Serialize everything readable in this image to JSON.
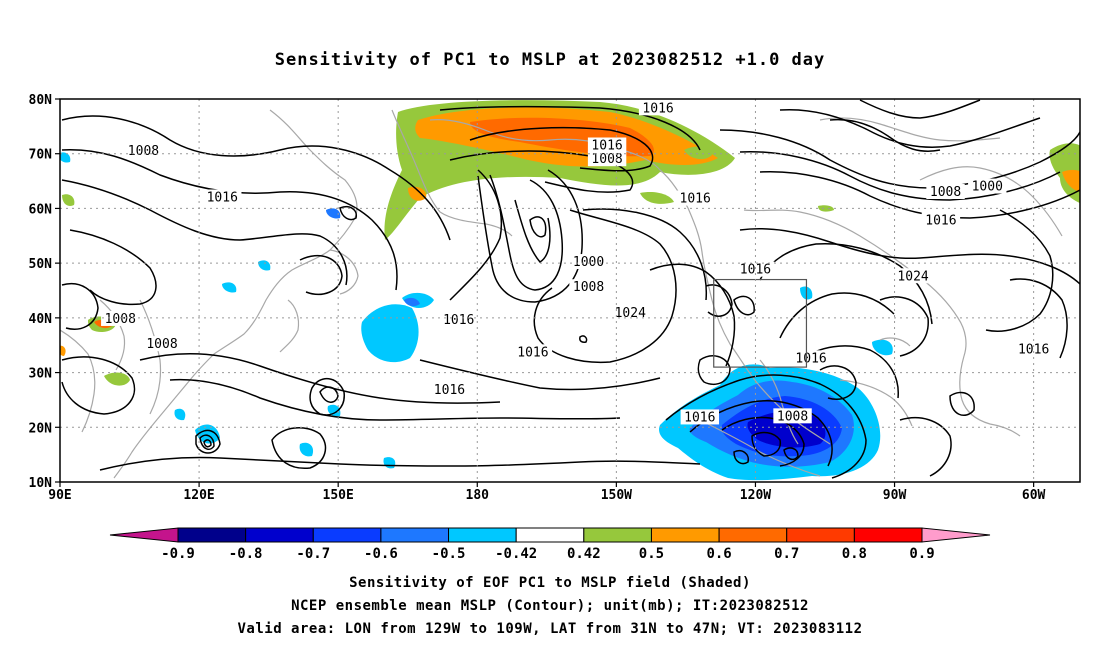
{
  "title": "Sensitivity of PC1 to MSLP at 2023082512 +1.0 day",
  "map": {
    "lon_range": [
      90,
      310
    ],
    "lat_range": [
      10,
      80
    ],
    "lat_ticks": [
      {
        "lat": 80,
        "label": "80N"
      },
      {
        "lat": 70,
        "label": "70N"
      },
      {
        "lat": 60,
        "label": "60N"
      },
      {
        "lat": 50,
        "label": "50N"
      },
      {
        "lat": 40,
        "label": "40N"
      },
      {
        "lat": 30,
        "label": "30N"
      },
      {
        "lat": 20,
        "label": "20N"
      },
      {
        "lat": 10,
        "label": "10N"
      }
    ],
    "lon_ticks": [
      {
        "lon": 90,
        "label": "90E"
      },
      {
        "lon": 120,
        "label": "120E"
      },
      {
        "lon": 150,
        "label": "150E"
      },
      {
        "lon": 180,
        "label": "180"
      },
      {
        "lon": 210,
        "label": "150W"
      },
      {
        "lon": 240,
        "label": "120W"
      },
      {
        "lon": 270,
        "label": "90W"
      },
      {
        "lon": 300,
        "label": "60W"
      }
    ],
    "valid_box": {
      "lon": [
        231,
        251
      ],
      "lat": [
        31,
        47
      ]
    },
    "contour_labels": [
      {
        "lon": 219,
        "lat": 78.3,
        "text": "1016"
      },
      {
        "lon": 108,
        "lat": 70.5,
        "text": "1008"
      },
      {
        "lon": 208,
        "lat": 71.5,
        "text": "1016"
      },
      {
        "lon": 208,
        "lat": 69.0,
        "text": "1008"
      },
      {
        "lon": 125,
        "lat": 62.0,
        "text": "1016"
      },
      {
        "lon": 227,
        "lat": 61.8,
        "text": "1016"
      },
      {
        "lon": 281,
        "lat": 63.0,
        "text": "1008"
      },
      {
        "lon": 290,
        "lat": 64.0,
        "text": "1000"
      },
      {
        "lon": 280,
        "lat": 57.8,
        "text": "1016"
      },
      {
        "lon": 204,
        "lat": 50.2,
        "text": "1000"
      },
      {
        "lon": 204,
        "lat": 45.6,
        "text": "1008"
      },
      {
        "lon": 240,
        "lat": 48.8,
        "text": "1016"
      },
      {
        "lon": 274,
        "lat": 47.6,
        "text": "1024"
      },
      {
        "lon": 213,
        "lat": 40.9,
        "text": "1024"
      },
      {
        "lon": 103,
        "lat": 39.8,
        "text": "1008"
      },
      {
        "lon": 112,
        "lat": 35.2,
        "text": "1008"
      },
      {
        "lon": 176,
        "lat": 39.6,
        "text": "1016"
      },
      {
        "lon": 192,
        "lat": 33.7,
        "text": "1016"
      },
      {
        "lon": 174,
        "lat": 26.8,
        "text": "1016"
      },
      {
        "lon": 228,
        "lat": 21.8,
        "text": "1016"
      },
      {
        "lon": 252,
        "lat": 32.6,
        "text": "1016"
      },
      {
        "lon": 248,
        "lat": 22.0,
        "text": "1008"
      },
      {
        "lon": 300,
        "lat": 34.2,
        "text": "1016"
      }
    ]
  },
  "colorbar": {
    "labels": [
      "-0.9",
      "-0.8",
      "-0.7",
      "-0.6",
      "-0.5",
      "-0.42",
      "0.42",
      "0.5",
      "0.6",
      "0.7",
      "0.8",
      "0.9"
    ],
    "colors": [
      "#00008b",
      "#0000cd",
      "#0a3cff",
      "#1e78ff",
      "#00c8ff",
      "#ffffff",
      "#96c83c",
      "#ff9a00",
      "#ff6a00",
      "#ff3a00",
      "#ff0000"
    ],
    "low_extend_color": "#c4148c",
    "high_extend_color": "#ff9ccc"
  },
  "captions": [
    "Sensitivity of EOF PC1 to MSLP field (Shaded)",
    "NCEP ensemble mean MSLP (Contour); unit(mb); IT:2023082512",
    "Valid area: LON from 129W to 109W, LAT from 31N to 47N; VT: 2023083112"
  ]
}
